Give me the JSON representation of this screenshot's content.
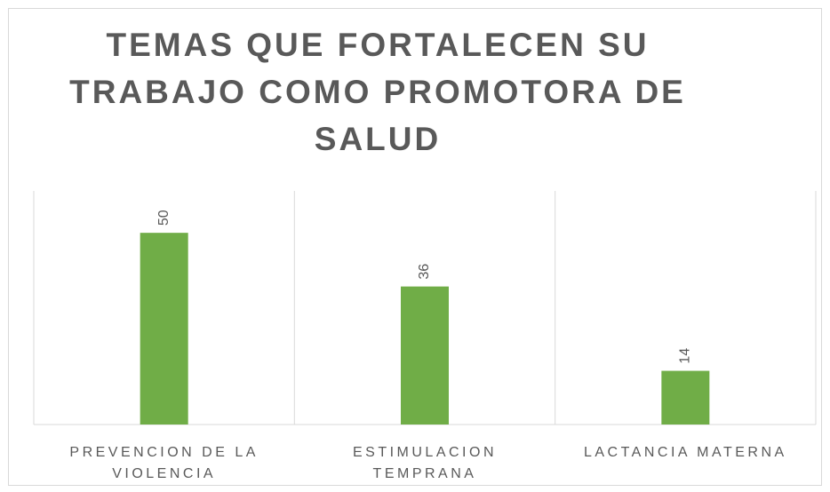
{
  "chart_data": {
    "type": "bar",
    "title": "TEMAS QUE FORTALECEN SU TRABAJO COMO PROMOTORA DE SALUD",
    "categories": [
      "PREVENCION DE LA VIOLENCIA",
      "ESTIMULACION TEMPRANA",
      "LACTANCIA MATERNA"
    ],
    "values": [
      50,
      36,
      14
    ],
    "color": "#70ad47",
    "ylim": [
      0,
      60
    ],
    "grid": true
  }
}
